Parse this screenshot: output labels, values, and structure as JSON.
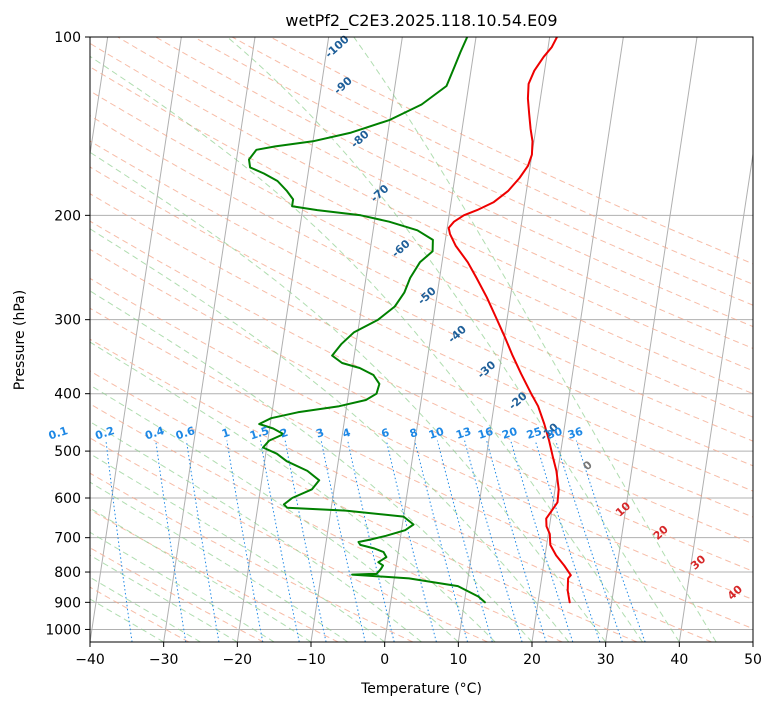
{
  "chart_data": {
    "type": "line",
    "title": "wetPf2_C2E3.2025.118.10.54.E09",
    "xlabel": "Temperature (°C)",
    "ylabel": "Pressure (hPa)",
    "xlim": [
      -40,
      50
    ],
    "ylim": [
      1050,
      100
    ],
    "y_scale": "log",
    "grid": true,
    "x_ticks": [
      -40,
      -30,
      -20,
      -10,
      0,
      10,
      20,
      30,
      40,
      50
    ],
    "x_tick_labels": [
      "−40",
      "−30",
      "−20",
      "−10",
      "0",
      "10",
      "20",
      "30",
      "40",
      "50"
    ],
    "y_ticks": [
      100,
      200,
      300,
      400,
      500,
      600,
      700,
      800,
      900,
      1000
    ],
    "y_tick_labels": [
      "100",
      "200",
      "300",
      "400",
      "500",
      "600",
      "700",
      "800",
      "900",
      "1000"
    ],
    "series": [
      {
        "color": "#ee0000",
        "points": [
          [
            24.3,
            900
          ],
          [
            23.8,
            860
          ],
          [
            23.6,
            820
          ],
          [
            23.9,
            810
          ],
          [
            22.8,
            780
          ],
          [
            21.5,
            750
          ],
          [
            20.5,
            720
          ],
          [
            20.2,
            690
          ],
          [
            19.6,
            670
          ],
          [
            19.4,
            650
          ],
          [
            20.0,
            630
          ],
          [
            20.6,
            610
          ],
          [
            20.5,
            580
          ],
          [
            19.8,
            540
          ],
          [
            19.0,
            510
          ],
          [
            18.2,
            480
          ],
          [
            17.2,
            450
          ],
          [
            16.0,
            420
          ],
          [
            14.8,
            400
          ],
          [
            13.0,
            370
          ],
          [
            11.5,
            345
          ],
          [
            10.0,
            320
          ],
          [
            8.5,
            298
          ],
          [
            6.8,
            275
          ],
          [
            5.0,
            255
          ],
          [
            3.5,
            240
          ],
          [
            1.5,
            225
          ],
          [
            0.5,
            215
          ],
          [
            0.2,
            210
          ],
          [
            0.8,
            205
          ],
          [
            2.0,
            200
          ],
          [
            3.7,
            196
          ],
          [
            5.8,
            190
          ],
          [
            7.5,
            182
          ],
          [
            8.8,
            173
          ],
          [
            9.7,
            165
          ],
          [
            10.0,
            158
          ],
          [
            9.8,
            150
          ],
          [
            9.3,
            143
          ],
          [
            8.8,
            135
          ],
          [
            8.3,
            127
          ],
          [
            8.1,
            120
          ],
          [
            8.6,
            114
          ],
          [
            9.6,
            108
          ],
          [
            10.5,
            104
          ],
          [
            11.0,
            100
          ]
        ]
      },
      {
        "color": "#008000",
        "points": [
          [
            12.8,
            900
          ],
          [
            11.8,
            880
          ],
          [
            8.8,
            845
          ],
          [
            2.0,
            820
          ],
          [
            -5.8,
            808
          ],
          [
            -3.5,
            806
          ],
          [
            -2.5,
            806
          ],
          [
            -2.0,
            790
          ],
          [
            -1.8,
            780
          ],
          [
            -2.5,
            770
          ],
          [
            -1.5,
            755
          ],
          [
            -2.0,
            740
          ],
          [
            -3.3,
            730
          ],
          [
            -5.3,
            720
          ],
          [
            -5.6,
            712
          ],
          [
            -4.0,
            705
          ],
          [
            -2.0,
            695
          ],
          [
            0.5,
            680
          ],
          [
            1.5,
            665
          ],
          [
            0.0,
            645
          ],
          [
            -8.0,
            630
          ],
          [
            -16.0,
            623
          ],
          [
            -16.5,
            615
          ],
          [
            -15.5,
            600
          ],
          [
            -13.0,
            580
          ],
          [
            -12.2,
            560
          ],
          [
            -14.0,
            540
          ],
          [
            -17.0,
            520
          ],
          [
            -18.5,
            505
          ],
          [
            -20.5,
            493
          ],
          [
            -19.8,
            480
          ],
          [
            -18.0,
            468
          ],
          [
            -19.5,
            458
          ],
          [
            -21.5,
            450
          ],
          [
            -20.0,
            440
          ],
          [
            -16.5,
            430
          ],
          [
            -11.0,
            420
          ],
          [
            -7.5,
            410
          ],
          [
            -6.2,
            400
          ],
          [
            -6.0,
            385
          ],
          [
            -7.0,
            372
          ],
          [
            -9.0,
            362
          ],
          [
            -11.5,
            355
          ],
          [
            -13.0,
            345
          ],
          [
            -12.0,
            330
          ],
          [
            -10.5,
            315
          ],
          [
            -7.5,
            300
          ],
          [
            -5.5,
            285
          ],
          [
            -4.5,
            270
          ],
          [
            -4.0,
            255
          ],
          [
            -3.0,
            240
          ],
          [
            -1.5,
            230
          ],
          [
            -1.7,
            220
          ],
          [
            -4.0,
            212
          ],
          [
            -8.0,
            205
          ],
          [
            -12.0,
            200
          ],
          [
            -18.0,
            196
          ],
          [
            -21.5,
            193
          ],
          [
            -21.5,
            188
          ],
          [
            -22.5,
            182
          ],
          [
            -24.0,
            175
          ],
          [
            -26.0,
            170
          ],
          [
            -28.0,
            166
          ],
          [
            -28.3,
            161
          ],
          [
            -27.5,
            155
          ],
          [
            -25.0,
            153
          ],
          [
            -20.0,
            150
          ],
          [
            -15.0,
            145
          ],
          [
            -10.0,
            138
          ],
          [
            -6.0,
            130
          ],
          [
            -3.0,
            121
          ],
          [
            -2.3,
            112
          ],
          [
            -1.8,
            106
          ],
          [
            -1.2,
            100
          ]
        ]
      }
    ],
    "dry_adiabat_labels": [
      {
        "text": "-100",
        "t": -18.6,
        "p": 104
      },
      {
        "text": "-90",
        "t": -17.0,
        "p": 121
      },
      {
        "text": "-80",
        "t": -13.6,
        "p": 149
      },
      {
        "text": "-70",
        "t": -9.8,
        "p": 184
      },
      {
        "text": "-60",
        "t": -5.8,
        "p": 228
      },
      {
        "text": "-50",
        "t": -1.3,
        "p": 274
      },
      {
        "text": "-40",
        "t": 3.6,
        "p": 318
      },
      {
        "text": "-30",
        "t": 8.3,
        "p": 365
      },
      {
        "text": "-20",
        "t": 13.2,
        "p": 412
      },
      {
        "text": "-10",
        "t": 18.1,
        "p": 465
      }
    ],
    "moist_adiabat_labels": [
      {
        "text": "0",
        "t": 24.0,
        "p": 530,
        "color": "#777777"
      },
      {
        "text": "10",
        "t": 29.7,
        "p": 628,
        "color": "#d62728"
      },
      {
        "text": "20",
        "t": 35.3,
        "p": 688,
        "color": "#d62728"
      },
      {
        "text": "30",
        "t": 41.0,
        "p": 772,
        "color": "#d62728"
      },
      {
        "text": "40",
        "t": 46.6,
        "p": 868,
        "color": "#d62728"
      }
    ],
    "mixing_ratio_labels": {
      "p": 480,
      "values": [
        "0.1",
        "0.2",
        "0.4",
        "0.6",
        "1",
        "1.5",
        "2",
        "3",
        "4",
        "6",
        "8",
        "10",
        "13",
        "16",
        "20",
        "25",
        "30",
        "36"
      ]
    }
  }
}
